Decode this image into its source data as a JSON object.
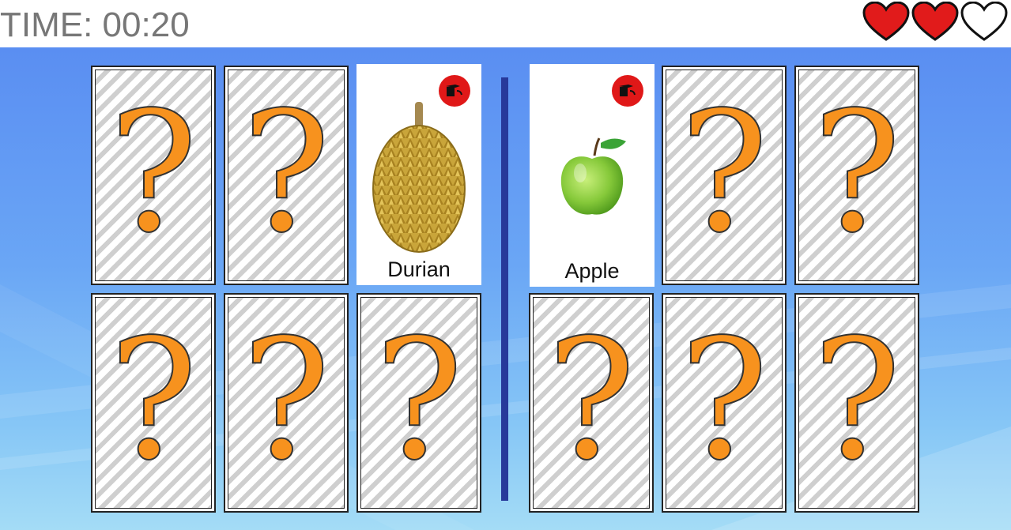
{
  "header": {
    "timer_text": "TIME: 00:20",
    "lives": [
      {
        "state": "full",
        "icon": "heart-full-icon",
        "color": "#e11b1b"
      },
      {
        "state": "full",
        "icon": "heart-full-icon",
        "color": "#e11b1b"
      },
      {
        "state": "empty",
        "icon": "heart-empty-icon",
        "color": "#ffffff"
      }
    ]
  },
  "board": {
    "left_cards": [
      {
        "state": "hidden",
        "symbol": "?"
      },
      {
        "state": "hidden",
        "symbol": "?"
      },
      {
        "state": "revealed",
        "label": "Durian",
        "icon": "durian-icon"
      },
      {
        "state": "hidden",
        "symbol": "?"
      },
      {
        "state": "hidden",
        "symbol": "?"
      },
      {
        "state": "hidden",
        "symbol": "?"
      }
    ],
    "right_cards": [
      {
        "state": "revealed",
        "label": "Apple",
        "icon": "apple-icon"
      },
      {
        "state": "hidden",
        "symbol": "?"
      },
      {
        "state": "hidden",
        "symbol": "?"
      },
      {
        "state": "hidden",
        "symbol": "?"
      },
      {
        "state": "hidden",
        "symbol": "?"
      },
      {
        "state": "hidden",
        "symbol": "?"
      }
    ]
  },
  "colors": {
    "question_mark": "#f7921e",
    "divider": "#27399a",
    "badge": "#e01818"
  }
}
